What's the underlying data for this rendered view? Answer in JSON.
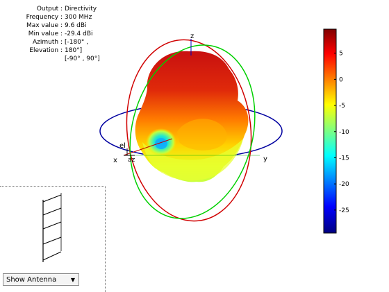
{
  "info_panel": {
    "rows": [
      {
        "label": "Output :",
        "value": "Directivity"
      },
      {
        "label": "Frequency :",
        "value": "300 MHz"
      },
      {
        "label": "Max value :",
        "value": "9.6 dBi"
      },
      {
        "label": "Min value :",
        "value": "-29.4 dBi"
      },
      {
        "label": "Azimuth :",
        "value": "[-180° ,"
      },
      {
        "label": "Elevation :",
        "value": "180°]"
      }
    ],
    "extra_line": "[-90° , 90°]"
  },
  "axes": {
    "x_label": "x",
    "y_label": "y",
    "z_label": "z",
    "el_label": "el",
    "az_label": "az"
  },
  "colorbar": {
    "ticks": [
      "5",
      "0",
      "-5",
      "-10",
      "-15",
      "-20",
      "-25"
    ],
    "tick_values": [
      5,
      0,
      -5,
      -10,
      -15,
      -20,
      -25
    ],
    "min": -29.4,
    "max": 9.6,
    "colormap": "jet"
  },
  "colors": {
    "x_axis_ring": "#0000a0",
    "y_axis_ring": "#00d000",
    "z_axis_ring": "#d00000"
  },
  "dropdown": {
    "selected": "Show Antenna",
    "icon": "chevron-down-icon"
  }
}
